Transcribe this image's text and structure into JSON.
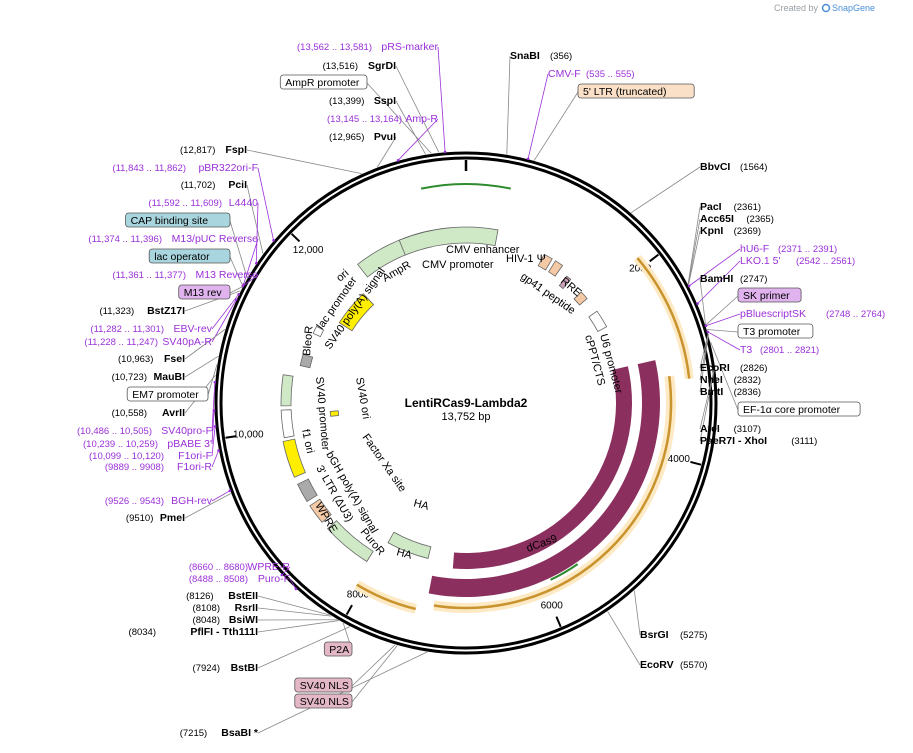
{
  "branding": {
    "created_by": "Created by",
    "product": "SnapGene"
  },
  "plasmid": {
    "name": "LentiRCas9-Lambda2",
    "size_label": "13,752 bp",
    "length": 13752
  },
  "ticks": [
    "2000",
    "4000",
    "6000",
    "8000",
    "10,000",
    "12,000"
  ],
  "features": [
    {
      "name": "CMV enhancer",
      "start": 410,
      "end": 790,
      "color": "#cfe9c7"
    },
    {
      "name": "CMV promoter",
      "start": 790,
      "end": 1000,
      "color": "#cfe9c7"
    },
    {
      "name": "HIV-1 Ψ",
      "start": 1060,
      "end": 1180,
      "color": "#f4c9a6"
    },
    {
      "name": "RRE",
      "start": 1230,
      "end": 1440,
      "color": "#f4c9a6"
    },
    {
      "name": "gp41 peptide",
      "start": 1470,
      "end": 1540,
      "color": "#c9a0b8"
    },
    {
      "name": "U6 promoter",
      "start": 2100,
      "end": 2350,
      "color": "#ffffff"
    },
    {
      "name": "cPPT/CTS",
      "start": 1760,
      "end": 1880,
      "color": "#f4c9a6"
    },
    {
      "name": "Cas9",
      "start": 2950,
      "end": 7050,
      "color": "#8b2f5f"
    },
    {
      "name": "dCas9",
      "start": 2950,
      "end": 7300,
      "color": "#8b2f5f"
    },
    {
      "name": "HA",
      "start": 7050,
      "end": 7100,
      "color": "#8b2f5f"
    },
    {
      "name": "PuroR",
      "start": 7400,
      "end": 7990,
      "color": "#cfe9c7"
    },
    {
      "name": "WPRE",
      "start": 8100,
      "end": 8700,
      "color": "#cfe9c7"
    },
    {
      "name": "3' LTR (ΔU3)",
      "start": 8800,
      "end": 9040,
      "color": "#f4c9a6"
    },
    {
      "name": "bGH poly(A) signal",
      "start": 9100,
      "end": 9330,
      "color": "#aaaaaa"
    },
    {
      "name": "f1 ori",
      "start": 9420,
      "end": 9860,
      "color": "#ffee00"
    },
    {
      "name": "SV40 promoter",
      "start": 9900,
      "end": 10230,
      "color": "#ffffff"
    },
    {
      "name": "BleoR",
      "start": 10280,
      "end": 10650,
      "color": "#cfe9c7"
    },
    {
      "name": "SV40 ori",
      "start": 10100,
      "end": 10230,
      "color": "#ffee00"
    },
    {
      "name": "SV40 poly(A) signal",
      "start": 10800,
      "end": 10950,
      "color": "#aaaaaa"
    },
    {
      "name": "lac promoter",
      "start": 11250,
      "end": 11350,
      "color": "#ffffff"
    },
    {
      "name": "ori",
      "start": 11550,
      "end": 12100,
      "color": "#ffee00"
    },
    {
      "name": "AmpR",
      "start": 12300,
      "end": 13100,
      "color": "#cfe9c7"
    },
    {
      "name": "AmpR promoter",
      "start": 13100,
      "end": 13200,
      "color": "#ffffff"
    },
    {
      "name": "Factor Xa site",
      "start": 7250,
      "end": 7270,
      "color": "#000000"
    }
  ],
  "labels_left": [
    {
      "coord": "(13,562 .. 13,581)",
      "name": "pRS-marker",
      "kind": "primer"
    },
    {
      "coord": "(13,516)",
      "name": "SgrDI",
      "kind": "enzyme"
    },
    {
      "coord": "",
      "name": "AmpR promoter",
      "kind": "box"
    },
    {
      "coord": "(13,399)",
      "name": "SspI",
      "kind": "enzyme"
    },
    {
      "coord": "(13,145 .. 13,164)",
      "name": "Amp-R",
      "kind": "primer"
    },
    {
      "coord": "(12,965)",
      "name": "PvuI",
      "kind": "enzyme"
    },
    {
      "coord": "(12,817)",
      "name": "FspI",
      "kind": "enzyme"
    },
    {
      "coord": "(11,843 .. 11,862)",
      "name": "pBR322ori-F",
      "kind": "primer"
    },
    {
      "coord": "(11,702)",
      "name": "PciI",
      "kind": "enzyme"
    },
    {
      "coord": "(11,592 .. 11,609)",
      "name": "L4440",
      "kind": "primer"
    },
    {
      "coord": "",
      "name": "CAP binding site",
      "kind": "box-cyan"
    },
    {
      "coord": "(11,374 .. 11,396)",
      "name": "M13/pUC Reverse",
      "kind": "primer"
    },
    {
      "coord": "",
      "name": "lac operator",
      "kind": "box-cyan"
    },
    {
      "coord": "(11,361 .. 11,377)",
      "name": "M13 Reverse",
      "kind": "primer"
    },
    {
      "coord": "",
      "name": "M13 rev",
      "kind": "box-purple"
    },
    {
      "coord": "(11,323)",
      "name": "BstZ17I",
      "kind": "enzyme"
    },
    {
      "coord": "(11,282 .. 11,301)",
      "name": "EBV-rev",
      "kind": "primer"
    },
    {
      "coord": "(11,228 .. 11,247)",
      "name": "SV40pA-R",
      "kind": "primer"
    },
    {
      "coord": "(10,963)",
      "name": "FseI",
      "kind": "enzyme"
    },
    {
      "coord": "(10,723)",
      "name": "MauBI",
      "kind": "enzyme"
    },
    {
      "coord": "",
      "name": "EM7 promoter",
      "kind": "box"
    },
    {
      "coord": "(10,558)",
      "name": "AvrII",
      "kind": "enzyme"
    },
    {
      "coord": "(10,486 .. 10,505)",
      "name": "SV40pro-F",
      "kind": "primer"
    },
    {
      "coord": "(10,239 .. 10,259)",
      "name": "pBABE 3'",
      "kind": "primer"
    },
    {
      "coord": "(10,099 .. 10,120)",
      "name": "F1ori-F",
      "kind": "primer"
    },
    {
      "coord": "(9889 .. 9908)",
      "name": "F1ori-R",
      "kind": "primer"
    },
    {
      "coord": "(9526 .. 9543)",
      "name": "BGH-rev",
      "kind": "primer"
    },
    {
      "coord": "(9510)",
      "name": "PmeI",
      "kind": "enzyme"
    },
    {
      "coord": "(8660 .. 8680)",
      "name": "WPRE-R",
      "kind": "primer"
    },
    {
      "coord": "(8488 .. 8508)",
      "name": "Puro-F",
      "kind": "primer"
    },
    {
      "coord": "(8126)",
      "name": "BstEII",
      "kind": "enzyme"
    },
    {
      "coord": "(8108)",
      "name": "RsrII",
      "kind": "enzyme"
    },
    {
      "coord": "(8048)",
      "name": "BsiWI",
      "kind": "enzyme"
    },
    {
      "coord": "(8034)",
      "name": "PflFI - Tth111I",
      "kind": "enzyme"
    },
    {
      "coord": "",
      "name": "P2A",
      "kind": "box-pink"
    },
    {
      "coord": "(7924)",
      "name": "BstBI",
      "kind": "enzyme"
    },
    {
      "coord": "",
      "name": "SV40 NLS",
      "kind": "box-pink"
    },
    {
      "coord": "",
      "name": "SV40 NLS",
      "kind": "box-pink"
    },
    {
      "coord": "(7215)",
      "name": "BsaBI *",
      "kind": "enzyme"
    }
  ],
  "labels_right": [
    {
      "coord": "(356)",
      "name": "SnaBI",
      "kind": "enzyme"
    },
    {
      "coord": "(535 .. 555)",
      "name": "CMV-F",
      "kind": "primer"
    },
    {
      "coord": "",
      "name": "5' LTR (truncated)",
      "kind": "box-orange"
    },
    {
      "coord": "(1564)",
      "name": "BbvCI",
      "kind": "enzyme"
    },
    {
      "coord": "(2361)",
      "name": "PacI",
      "kind": "enzyme"
    },
    {
      "coord": "(2365)",
      "name": "Acc65I",
      "kind": "enzyme"
    },
    {
      "coord": "(2369)",
      "name": "KpnI",
      "kind": "enzyme"
    },
    {
      "coord": "(2371 .. 2391)",
      "name": "hU6-F",
      "kind": "primer"
    },
    {
      "coord": "(2542 .. 2561)",
      "name": "LKO.1 5'",
      "kind": "primer"
    },
    {
      "coord": "(2747)",
      "name": "BamHI",
      "kind": "enzyme"
    },
    {
      "coord": "",
      "name": "SK primer",
      "kind": "box-purple"
    },
    {
      "coord": "(2748 .. 2764)",
      "name": "pBluescriptSK",
      "kind": "primer"
    },
    {
      "coord": "",
      "name": "T3 promoter",
      "kind": "box"
    },
    {
      "coord": "(2801 .. 2821)",
      "name": "T3",
      "kind": "primer"
    },
    {
      "coord": "(2826)",
      "name": "EcoRI",
      "kind": "enzyme"
    },
    {
      "coord": "(2832)",
      "name": "NheI",
      "kind": "enzyme"
    },
    {
      "coord": "(2836)",
      "name": "BmtI",
      "kind": "enzyme"
    },
    {
      "coord": "",
      "name": "EF-1α core promoter",
      "kind": "box"
    },
    {
      "coord": "(3107)",
      "name": "AfeI",
      "kind": "enzyme"
    },
    {
      "coord": "(3111)",
      "name": "PaeR7I - XhoI",
      "kind": "enzyme"
    },
    {
      "coord": "(5275)",
      "name": "BsrGI",
      "kind": "enzyme"
    },
    {
      "coord": "(5570)",
      "name": "EcoRV",
      "kind": "enzyme"
    }
  ]
}
